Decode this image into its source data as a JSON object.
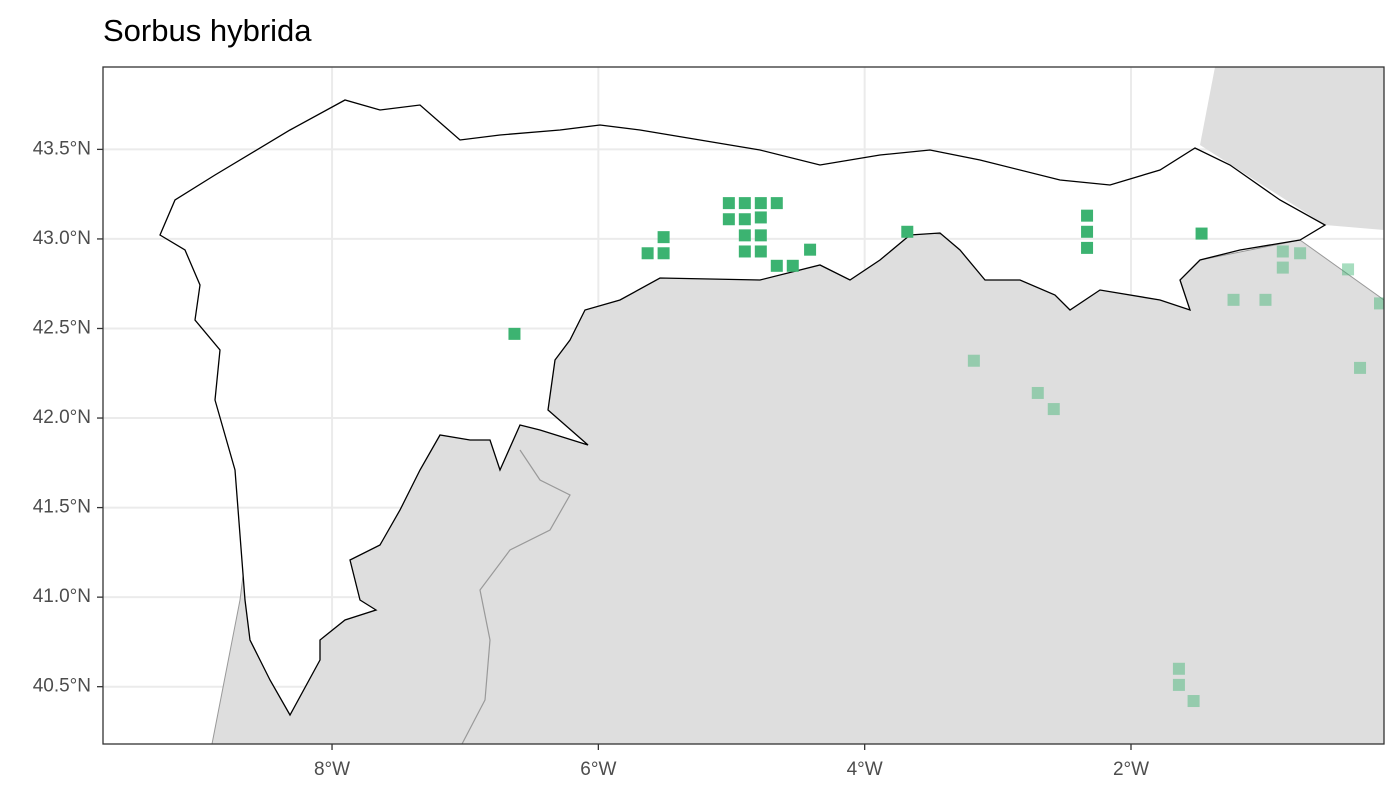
{
  "chart_data": {
    "type": "scatter",
    "title": "Sorbus hybrida",
    "xlim": [
      -9.72,
      -0.1
    ],
    "ylim": [
      40.18,
      43.96
    ],
    "xticks": [
      {
        "value": -8,
        "label": "8°W"
      },
      {
        "value": -6,
        "label": "6°W"
      },
      {
        "value": -4,
        "label": "4°W"
      },
      {
        "value": -2,
        "label": "2°W"
      }
    ],
    "yticks": [
      {
        "value": 40.5,
        "label": "40.5°N"
      },
      {
        "value": 41.0,
        "label": "41.0°N"
      },
      {
        "value": 41.5,
        "label": "41.5°N"
      },
      {
        "value": 42.0,
        "label": "42.0°N"
      },
      {
        "value": 42.5,
        "label": "42.5°N"
      },
      {
        "value": 43.0,
        "label": "43.0°N"
      },
      {
        "value": 43.5,
        "label": "43.5°N"
      }
    ],
    "grid": true,
    "series": [
      {
        "color": "#3cb371",
        "opacity": 1,
        "x": [
          -6.63,
          -5.63,
          -5.51,
          -5.51,
          -5.02,
          -4.9,
          -4.78,
          -4.66,
          -5.02,
          -4.9,
          -4.78,
          -4.9,
          -4.78,
          -4.9,
          -4.78,
          -4.66,
          -4.54,
          -4.41,
          -3.68,
          -2.33,
          -2.33,
          -2.33,
          -1.47
        ],
        "y": [
          42.47,
          42.92,
          43.01,
          42.92,
          43.2,
          43.2,
          43.2,
          43.2,
          43.11,
          43.11,
          43.12,
          43.02,
          43.02,
          42.93,
          42.93,
          42.85,
          42.85,
          42.94,
          43.04,
          43.13,
          43.04,
          42.95,
          43.03
        ]
      },
      {
        "color": "#3cb371",
        "opacity": 0.45,
        "x": [
          -1.23,
          -0.99,
          -0.86,
          -0.73,
          -0.86,
          -0.37,
          -0.13,
          -0.28,
          -3.18,
          -2.7,
          -2.58,
          -1.64,
          -1.64,
          -1.53
        ],
        "y": [
          42.66,
          42.66,
          42.93,
          42.92,
          42.84,
          42.83,
          42.64,
          42.28,
          42.32,
          42.14,
          42.05,
          40.6,
          40.51,
          40.42
        ]
      }
    ]
  }
}
